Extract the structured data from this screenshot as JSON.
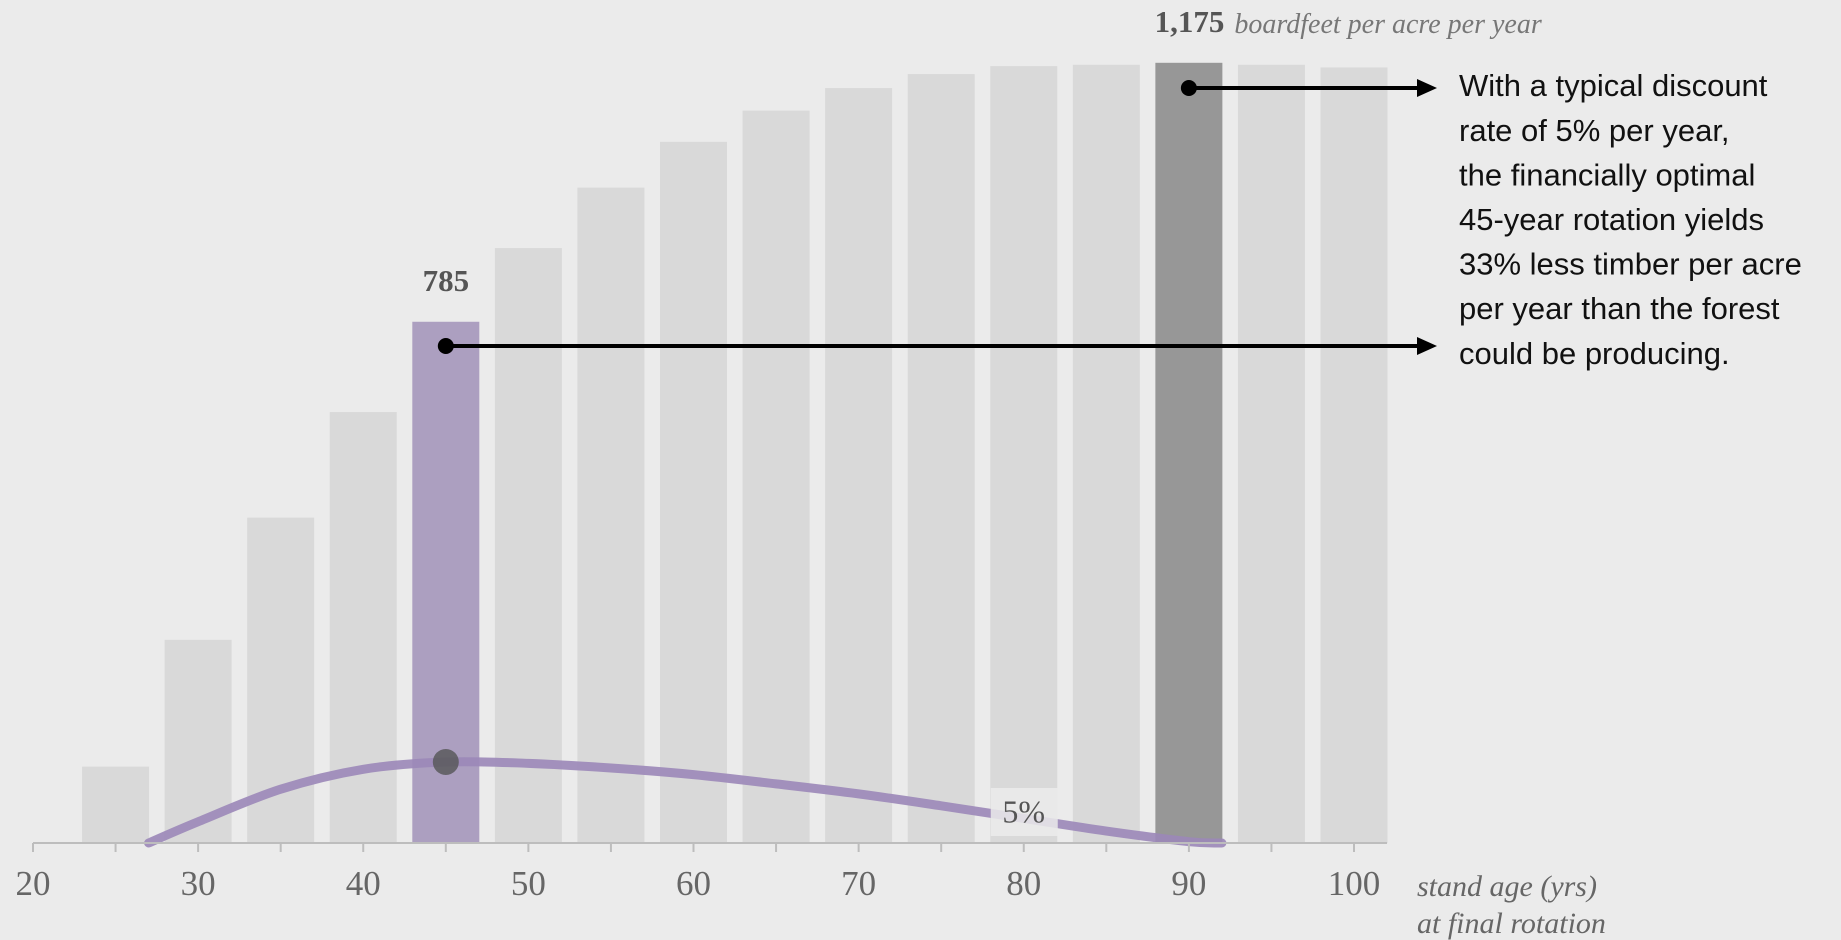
{
  "chart_data": {
    "type": "bar",
    "x": [
      25,
      30,
      35,
      40,
      45,
      50,
      55,
      60,
      65,
      70,
      75,
      80,
      85,
      90,
      95,
      100
    ],
    "values": [
      115,
      306,
      490,
      649,
      785,
      896,
      987,
      1056,
      1103,
      1137,
      1158,
      1170,
      1172,
      1175,
      1172,
      1168
    ],
    "value_labels": [
      null,
      null,
      null,
      null,
      "785",
      null,
      null,
      null,
      null,
      null,
      null,
      null,
      null,
      "1,175",
      null,
      null
    ],
    "colors": [
      "#d9d9d9",
      "#d9d9d9",
      "#d9d9d9",
      "#d9d9d9",
      "#ac9fc0",
      "#d9d9d9",
      "#d9d9d9",
      "#d9d9d9",
      "#d9d9d9",
      "#d9d9d9",
      "#d9d9d9",
      "#d9d9d9",
      "#d9d9d9",
      "#979797",
      "#d9d9d9",
      "#d9d9d9"
    ],
    "unit_label": "boardfeet per acre per year",
    "curve": {
      "name": "5%",
      "color": "#9b87b8",
      "x": [
        27,
        30,
        35,
        40,
        45,
        50,
        55,
        60,
        65,
        70,
        75,
        80,
        85,
        90,
        92
      ],
      "values": [
        0,
        32,
        81,
        111,
        122,
        120,
        113,
        103,
        89,
        74,
        56,
        37,
        18,
        2,
        0
      ]
    },
    "xlim": [
      20,
      102
    ],
    "ylim": [
      0,
      1200
    ],
    "xticks": [
      20,
      30,
      40,
      50,
      60,
      70,
      80,
      90,
      100
    ],
    "xminorticks": [
      25,
      35,
      45,
      55,
      65,
      75,
      85,
      95
    ],
    "xlabel": [
      "stand age (yrs)",
      "at final rotation"
    ],
    "annotation": [
      "With a typical discount",
      "rate of 5% per year,",
      "the financially optimal",
      "45-year rotation yields",
      "33% less timber per acre",
      "per year than the forest",
      "could be producing."
    ]
  }
}
